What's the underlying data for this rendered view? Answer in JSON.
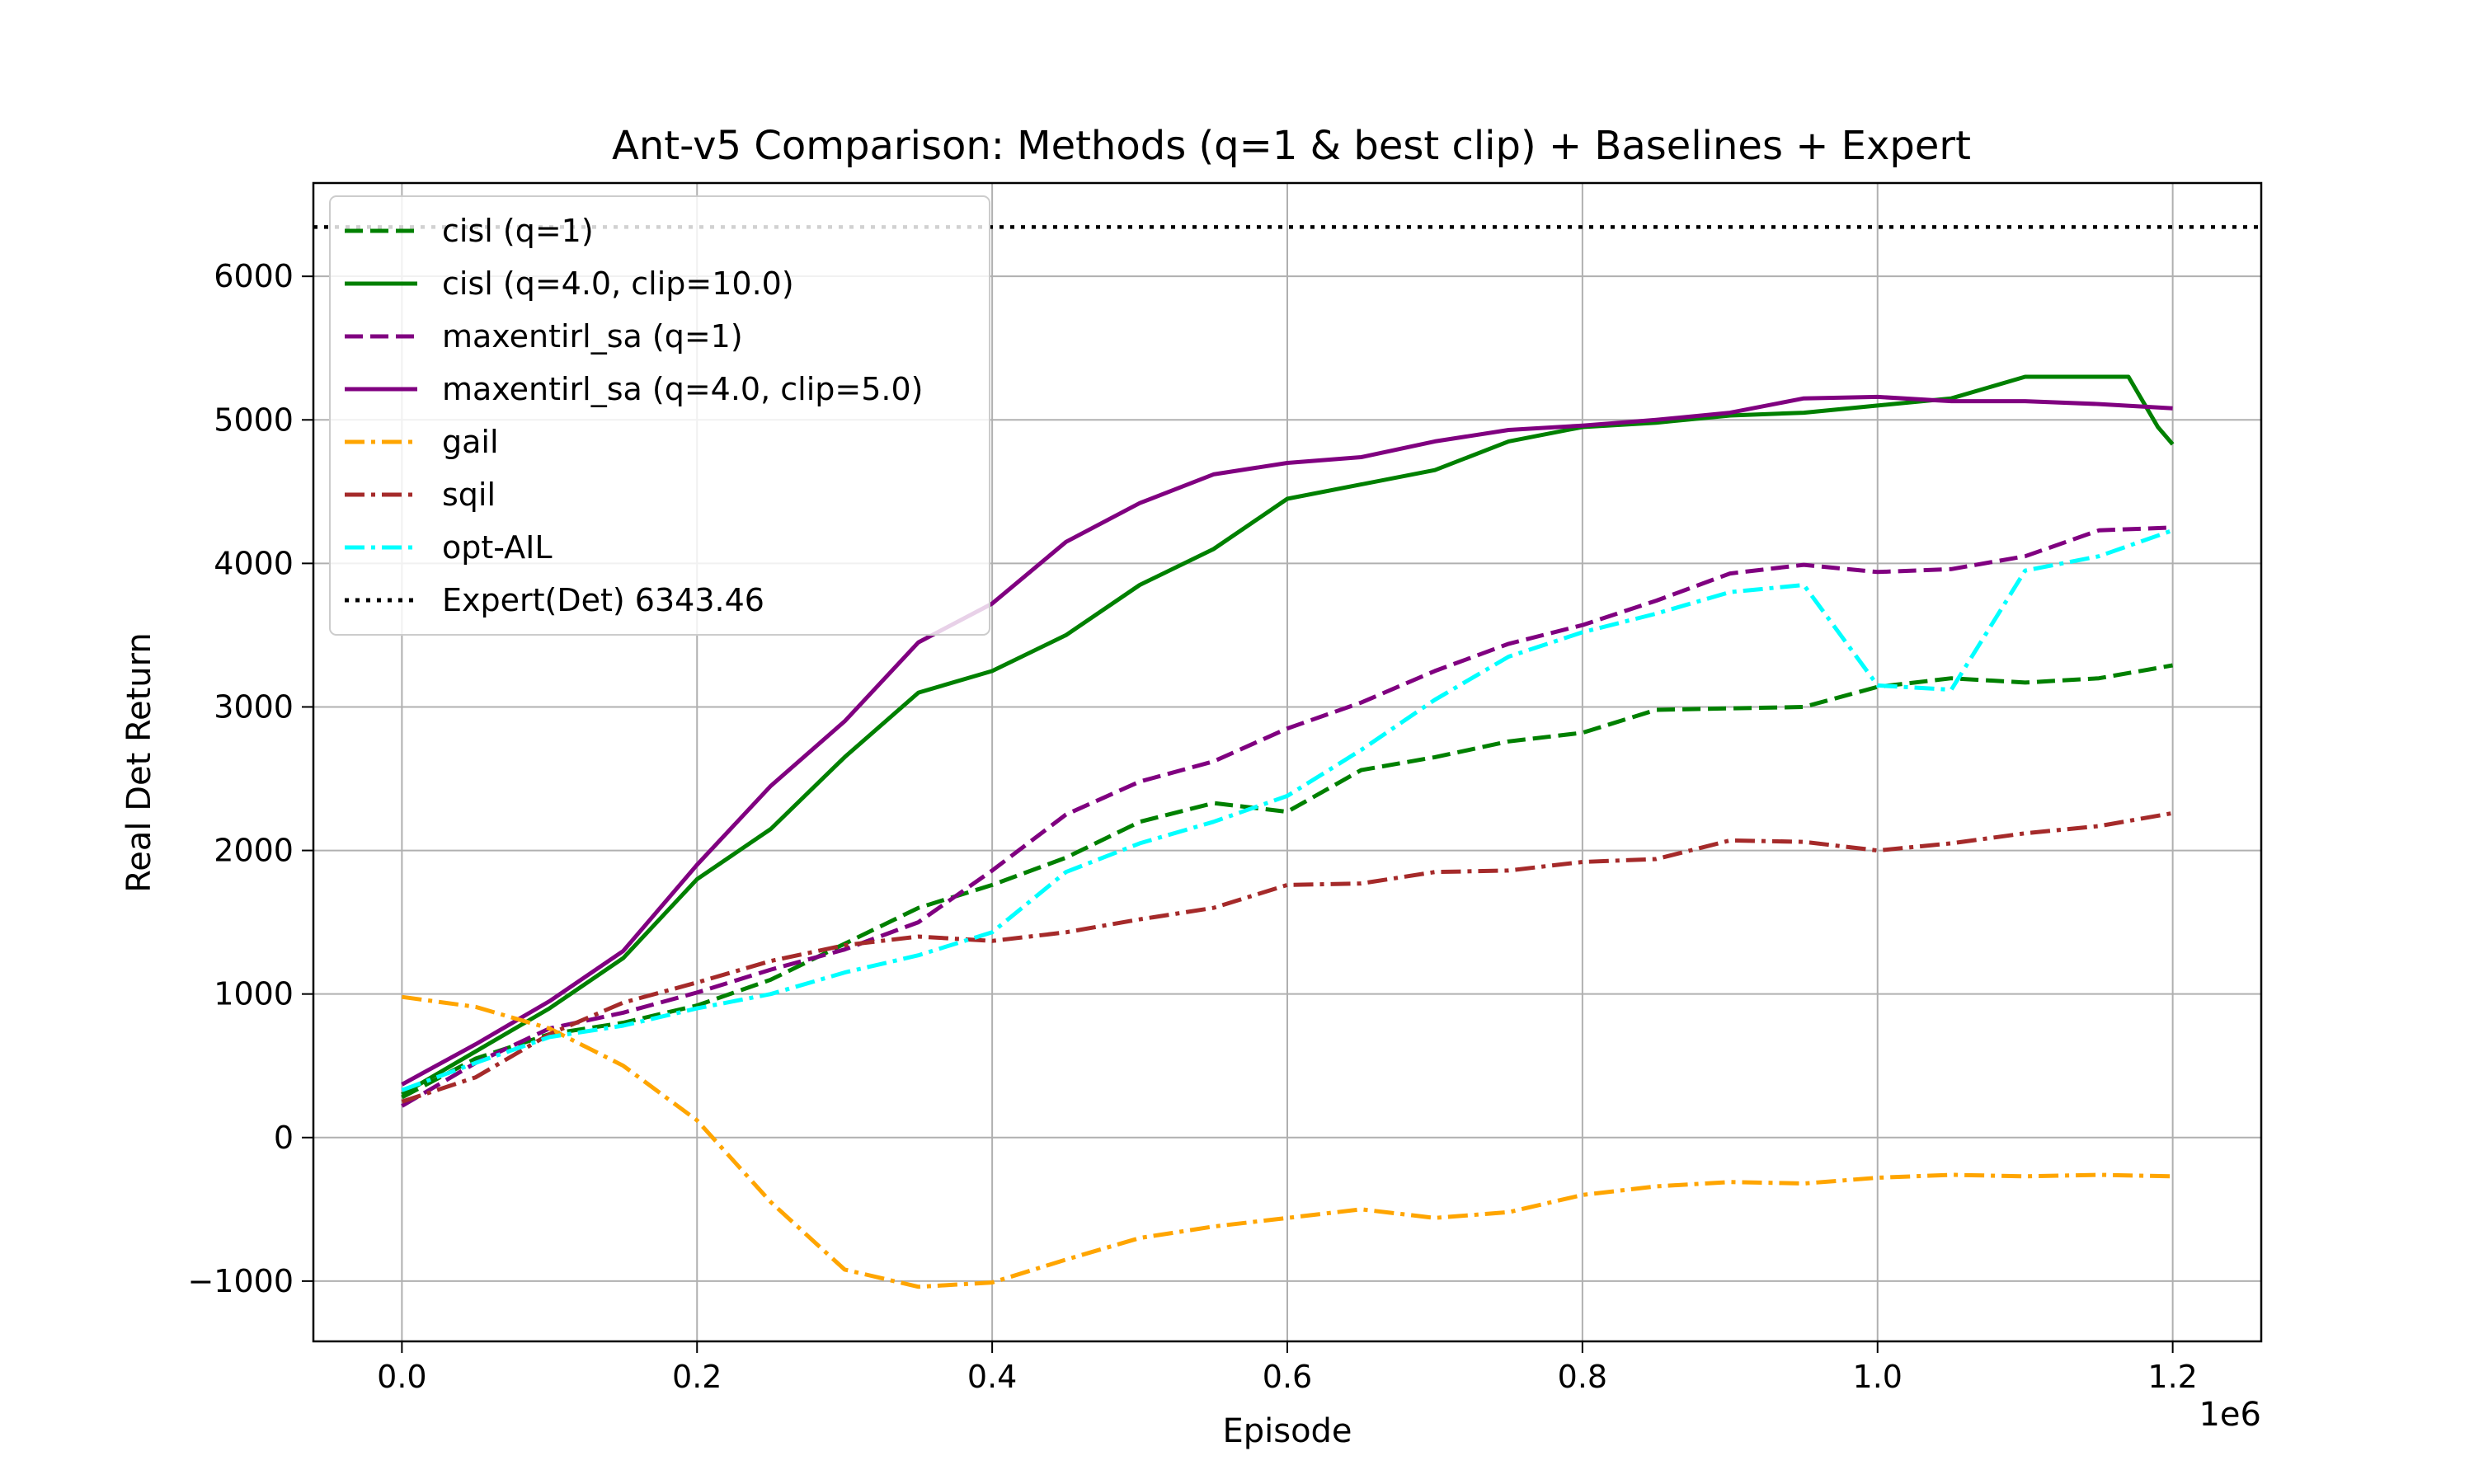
{
  "chart_data": {
    "type": "line",
    "title": "Ant-v5 Comparison: Methods (q=1 & best clip) + Baselines + Expert",
    "xlabel": "Episode",
    "ylabel": "Real Det Return",
    "x_scale_label": "1e6",
    "xlim": [
      -0.06,
      1.26
    ],
    "ylim": [
      -1420,
      6650
    ],
    "xticks": [
      0.0,
      0.2,
      0.4,
      0.6,
      0.8,
      1.0,
      1.2
    ],
    "xtick_labels": [
      "0.0",
      "0.2",
      "0.4",
      "0.6",
      "0.8",
      "1.0",
      "1.2"
    ],
    "yticks": [
      -1000,
      0,
      1000,
      2000,
      3000,
      4000,
      5000,
      6000
    ],
    "ytick_labels": [
      "−1000",
      "0",
      "1000",
      "2000",
      "3000",
      "4000",
      "5000",
      "6000"
    ],
    "grid": true,
    "legend_position": "upper-left",
    "expert": {
      "name": "Expert(Det) 6343.46",
      "value": 6343.46,
      "color": "#000000"
    },
    "series": [
      {
        "name": "cisl (q=1)",
        "color": "#008000",
        "style": "dashed",
        "x": [
          0.0,
          0.05,
          0.1,
          0.15,
          0.2,
          0.25,
          0.3,
          0.35,
          0.4,
          0.45,
          0.5,
          0.55,
          0.6,
          0.65,
          0.7,
          0.75,
          0.8,
          0.85,
          0.9,
          0.95,
          1.0,
          1.05,
          1.1,
          1.15,
          1.2
        ],
        "y": [
          280,
          550,
          720,
          800,
          920,
          1100,
          1350,
          1600,
          1760,
          1950,
          2200,
          2330,
          2270,
          2560,
          2650,
          2760,
          2820,
          2980,
          2990,
          3000,
          3140,
          3200,
          3170,
          3200,
          3290
        ]
      },
      {
        "name": "cisl (q=4.0, clip=10.0)",
        "color": "#008000",
        "style": "solid",
        "x": [
          0.0,
          0.05,
          0.1,
          0.15,
          0.2,
          0.25,
          0.3,
          0.35,
          0.4,
          0.45,
          0.5,
          0.55,
          0.6,
          0.65,
          0.7,
          0.75,
          0.8,
          0.85,
          0.9,
          0.95,
          1.0,
          1.05,
          1.1,
          1.15,
          1.17,
          1.19,
          1.2
        ],
        "y": [
          300,
          600,
          900,
          1250,
          1800,
          2150,
          2650,
          3100,
          3250,
          3500,
          3850,
          4100,
          4450,
          4550,
          4650,
          4850,
          4950,
          4980,
          5030,
          5050,
          5100,
          5150,
          5300,
          5300,
          5300,
          4950,
          4830
        ]
      },
      {
        "name": "maxentirl_sa (q=1)",
        "color": "#800080",
        "style": "dashed",
        "x": [
          0.0,
          0.05,
          0.1,
          0.15,
          0.2,
          0.25,
          0.3,
          0.35,
          0.4,
          0.45,
          0.5,
          0.55,
          0.6,
          0.65,
          0.7,
          0.75,
          0.8,
          0.85,
          0.9,
          0.95,
          1.0,
          1.05,
          1.1,
          1.15,
          1.2
        ],
        "y": [
          220,
          520,
          760,
          870,
          1010,
          1170,
          1310,
          1500,
          1860,
          2250,
          2480,
          2620,
          2850,
          3030,
          3250,
          3440,
          3570,
          3740,
          3930,
          3990,
          3940,
          3960,
          4050,
          4230,
          4250
        ]
      },
      {
        "name": "maxentirl_sa (q=4.0, clip=5.0)",
        "color": "#800080",
        "style": "solid",
        "x": [
          0.0,
          0.05,
          0.1,
          0.15,
          0.2,
          0.25,
          0.3,
          0.35,
          0.4,
          0.45,
          0.5,
          0.55,
          0.6,
          0.65,
          0.7,
          0.75,
          0.8,
          0.85,
          0.9,
          0.95,
          1.0,
          1.05,
          1.1,
          1.15,
          1.2
        ],
        "y": [
          370,
          650,
          950,
          1300,
          1900,
          2450,
          2900,
          3450,
          3720,
          4150,
          4420,
          4620,
          4700,
          4740,
          4850,
          4930,
          4960,
          5000,
          5050,
          5150,
          5160,
          5130,
          5130,
          5110,
          5080
        ]
      },
      {
        "name": "gail",
        "color": "#FFA500",
        "style": "dashdot",
        "x": [
          0.0,
          0.05,
          0.1,
          0.15,
          0.2,
          0.25,
          0.3,
          0.35,
          0.4,
          0.45,
          0.5,
          0.55,
          0.6,
          0.65,
          0.7,
          0.75,
          0.8,
          0.85,
          0.9,
          0.95,
          1.0,
          1.05,
          1.1,
          1.15,
          1.2
        ],
        "y": [
          980,
          910,
          760,
          500,
          120,
          -450,
          -920,
          -1040,
          -1010,
          -850,
          -700,
          -620,
          -560,
          -500,
          -560,
          -520,
          -400,
          -340,
          -310,
          -320,
          -280,
          -260,
          -270,
          -260,
          -270
        ]
      },
      {
        "name": "sqil",
        "color": "#A52A2A",
        "style": "dashdot",
        "x": [
          0.0,
          0.05,
          0.1,
          0.15,
          0.2,
          0.25,
          0.3,
          0.35,
          0.4,
          0.45,
          0.5,
          0.55,
          0.6,
          0.65,
          0.7,
          0.75,
          0.8,
          0.85,
          0.9,
          0.95,
          1.0,
          1.05,
          1.1,
          1.15,
          1.2
        ],
        "y": [
          250,
          420,
          720,
          940,
          1080,
          1230,
          1340,
          1400,
          1370,
          1430,
          1520,
          1600,
          1760,
          1770,
          1850,
          1860,
          1920,
          1940,
          2070,
          2060,
          2000,
          2050,
          2120,
          2170,
          2260
        ]
      },
      {
        "name": "opt-AIL",
        "color": "#00FFFF",
        "style": "dashdot",
        "x": [
          0.0,
          0.05,
          0.1,
          0.15,
          0.2,
          0.25,
          0.3,
          0.35,
          0.4,
          0.45,
          0.5,
          0.55,
          0.6,
          0.65,
          0.7,
          0.75,
          0.8,
          0.85,
          0.9,
          0.95,
          1.0,
          1.05,
          1.1,
          1.15,
          1.2
        ],
        "y": [
          330,
          520,
          700,
          780,
          900,
          1000,
          1150,
          1270,
          1430,
          1850,
          2050,
          2200,
          2380,
          2700,
          3050,
          3350,
          3520,
          3650,
          3800,
          3850,
          3150,
          3120,
          3950,
          4050,
          4230
        ]
      }
    ]
  }
}
